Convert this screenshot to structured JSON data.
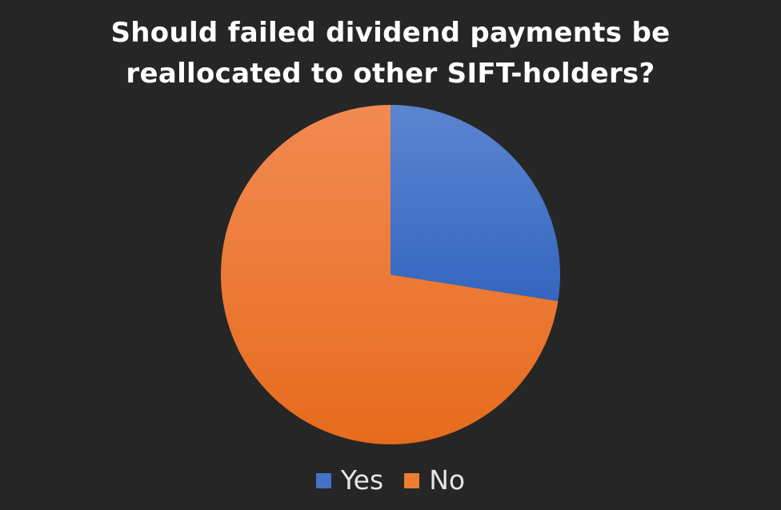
{
  "chart_data": {
    "type": "pie",
    "title_lines": [
      "Should failed dividend payments be",
      "reallocated to other SIFT-holders?"
    ],
    "categories": [
      "Yes",
      "No"
    ],
    "values": [
      27.5,
      72.5
    ],
    "value_unit": "percent (estimated)",
    "colors": [
      "#4472c4",
      "#ed7d31"
    ],
    "start_angle_deg": 0,
    "direction": "clockwise-from-top",
    "legend": {
      "position": "bottom",
      "entries": [
        "Yes",
        "No"
      ]
    }
  }
}
